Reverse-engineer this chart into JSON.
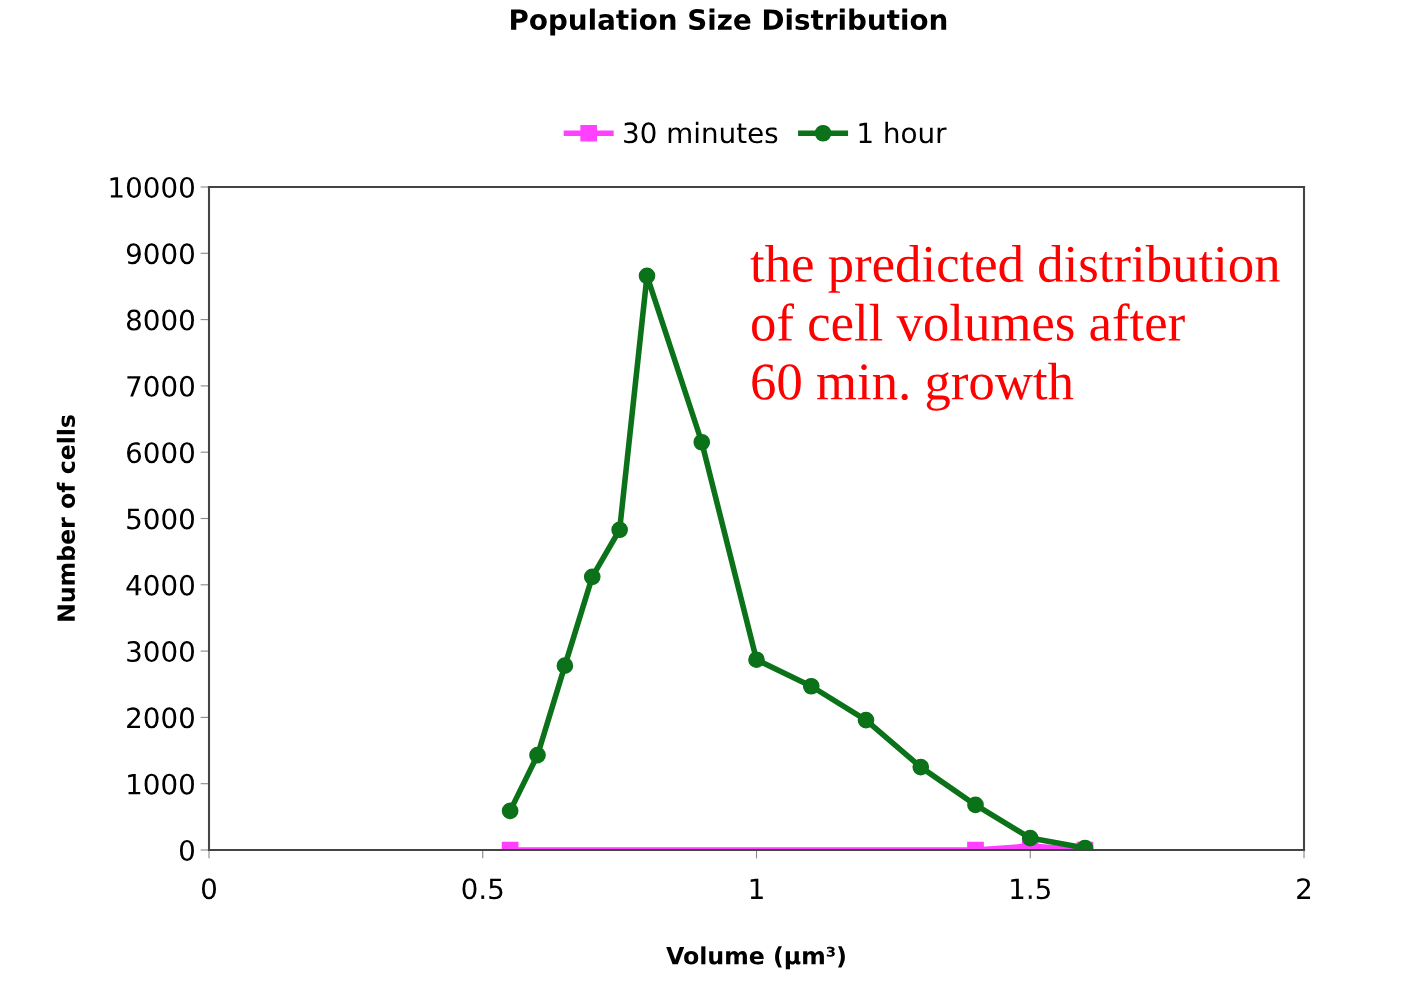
{
  "chart_data": {
    "type": "line",
    "title": "Population Size Distribution",
    "xlabel": "Volume (μm³)",
    "ylabel": "Number of cells",
    "series": [
      {
        "name": "30 minutes",
        "color": "#ff40ff",
        "marker": "square",
        "x": [
          0.55,
          1.4,
          1.5,
          1.6
        ],
        "values": [
          0,
          0,
          60,
          0
        ]
      },
      {
        "name": "1 hour",
        "color": "#0b7219",
        "marker": "circle",
        "x": [
          0.55,
          0.6,
          0.65,
          0.7,
          0.75,
          0.8,
          0.9,
          1.0,
          1.1,
          1.2,
          1.3,
          1.4,
          1.5,
          1.6
        ],
        "values": [
          590,
          1430,
          2780,
          4120,
          4830,
          8660,
          6150,
          2870,
          2470,
          1960,
          1250,
          680,
          180,
          30
        ]
      }
    ],
    "xlim": [
      0,
      2
    ],
    "xticks": [
      0,
      0.5,
      1,
      1.5,
      2
    ],
    "ylim": [
      0,
      10000
    ],
    "yticks": [
      0,
      1000,
      2000,
      3000,
      4000,
      5000,
      6000,
      7000,
      8000,
      9000,
      10000
    ],
    "grid": false,
    "legend": "top",
    "line_style": "solid",
    "annotations": [
      "the predicted distribution\nof cell volumes after\n60 min. growth"
    ]
  }
}
